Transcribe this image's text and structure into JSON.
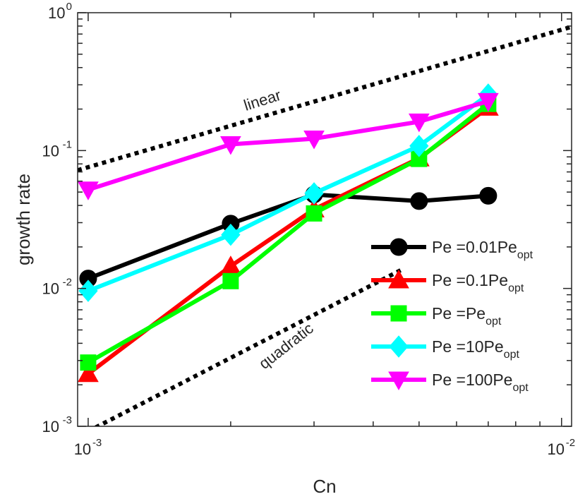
{
  "chart_data": {
    "type": "line",
    "xscale": "log",
    "yscale": "log",
    "xlabel": "Cn",
    "ylabel": "growth rate",
    "xlim": [
      0.00095,
      0.0105
    ],
    "ylim": [
      0.001,
      1
    ],
    "x_ticks": [
      {
        "value": 0.001,
        "base": "10",
        "exp": "-3"
      },
      {
        "value": 0.01,
        "base": "10",
        "exp": "-2"
      }
    ],
    "y_ticks": [
      {
        "value": 0.001,
        "base": "10",
        "exp": "-3"
      },
      {
        "value": 0.01,
        "base": "10",
        "exp": "-2"
      },
      {
        "value": 0.1,
        "base": "10",
        "exp": "-1"
      },
      {
        "value": 1,
        "base": "10",
        "exp": "0"
      }
    ],
    "x": [
      0.001,
      0.002,
      0.003,
      0.005,
      0.007
    ],
    "series": [
      {
        "name_main": "Pe =0.01Pe",
        "name_sub": "opt",
        "color": "#000000",
        "marker": "circle",
        "values": [
          0.0118,
          0.0295,
          0.048,
          0.043,
          0.047
        ]
      },
      {
        "name_main": "Pe =0.1Pe",
        "name_sub": "opt",
        "color": "#ff0000",
        "marker": "triangle-up",
        "values": [
          0.0024,
          0.0145,
          0.0375,
          0.088,
          0.205
        ]
      },
      {
        "name_main": "Pe =Pe",
        "name_sub": "opt",
        "color": "#00ff00",
        "marker": "square",
        "values": [
          0.0029,
          0.0113,
          0.035,
          0.087,
          0.218
        ]
      },
      {
        "name_main": "Pe =10Pe",
        "name_sub": "opt",
        "color": "#00ffff",
        "marker": "diamond",
        "values": [
          0.0096,
          0.0245,
          0.049,
          0.108,
          0.255
        ]
      },
      {
        "name_main": "Pe =100Pe",
        "name_sub": "opt",
        "color": "#ff00ff",
        "marker": "triangle-down",
        "values": [
          0.052,
          0.111,
          0.122,
          0.162,
          0.228
        ]
      }
    ],
    "reference_lines": [
      {
        "label": "linear",
        "style": "dotted",
        "color": "#000000",
        "points": [
          [
            0.00095,
            0.072
          ],
          [
            0.0105,
            0.79
          ]
        ]
      },
      {
        "label": "quadratic",
        "style": "dotted",
        "color": "#000000",
        "points": [
          [
            0.001,
            0.00092
          ],
          [
            0.0046,
            0.0137
          ]
        ]
      }
    ],
    "legend": "bottom-right",
    "grid": false
  }
}
